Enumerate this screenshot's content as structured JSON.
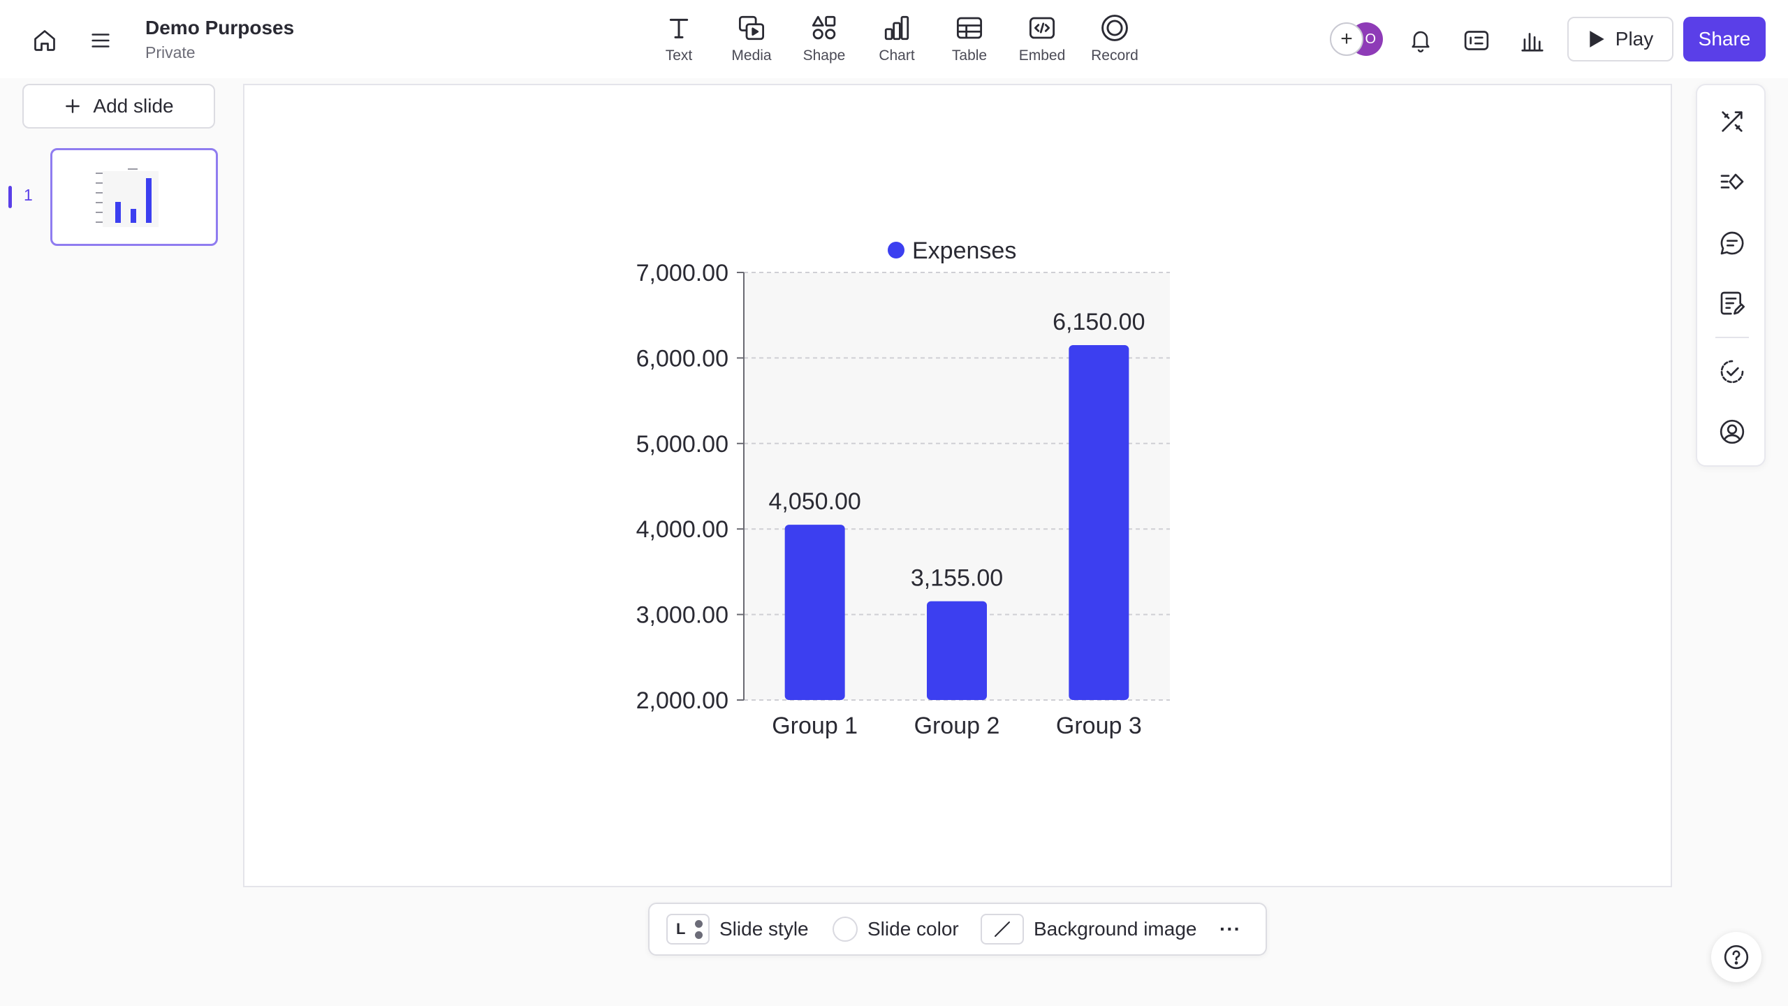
{
  "doc": {
    "title": "Demo Purposes",
    "visibility": "Private"
  },
  "toolbar": {
    "items": [
      {
        "label": "Text",
        "icon": "text-icon"
      },
      {
        "label": "Media",
        "icon": "media-icon"
      },
      {
        "label": "Shape",
        "icon": "shape-icon"
      },
      {
        "label": "Chart",
        "icon": "chart-icon"
      },
      {
        "label": "Table",
        "icon": "table-icon"
      },
      {
        "label": "Embed",
        "icon": "embed-icon"
      },
      {
        "label": "Record",
        "icon": "record-icon"
      }
    ]
  },
  "header": {
    "invite_symbol": "+",
    "avatar_initial": "O",
    "play_label": "Play",
    "share_label": "Share"
  },
  "sidebar": {
    "add_slide_label": "Add slide",
    "slides": [
      {
        "number": "1"
      }
    ]
  },
  "bottombar": {
    "slide_style_label": "Slide style",
    "slide_style_letter": "L",
    "slide_color_label": "Slide color",
    "background_image_label": "Background image",
    "more_symbol": "···"
  },
  "colors": {
    "accent": "#5a3fe8",
    "bar": "#3c3ff0",
    "avatar": "#8e3bb7"
  },
  "chart_data": {
    "type": "bar",
    "categories": [
      "Group 1",
      "Group 2",
      "Group 3"
    ],
    "series": [
      {
        "name": "Expenses",
        "values": [
          4050,
          3155,
          6150
        ]
      }
    ],
    "data_labels": [
      "4,050.00",
      "3,155.00",
      "6,150.00"
    ],
    "yticks": [
      2000,
      3000,
      4000,
      5000,
      6000,
      7000
    ],
    "ytick_labels": [
      "2,000.00",
      "3,000.00",
      "4,000.00",
      "5,000.00",
      "6,000.00",
      "7,000.00"
    ],
    "ylim": [
      2000,
      7000
    ],
    "legend": "top",
    "grid": true
  }
}
